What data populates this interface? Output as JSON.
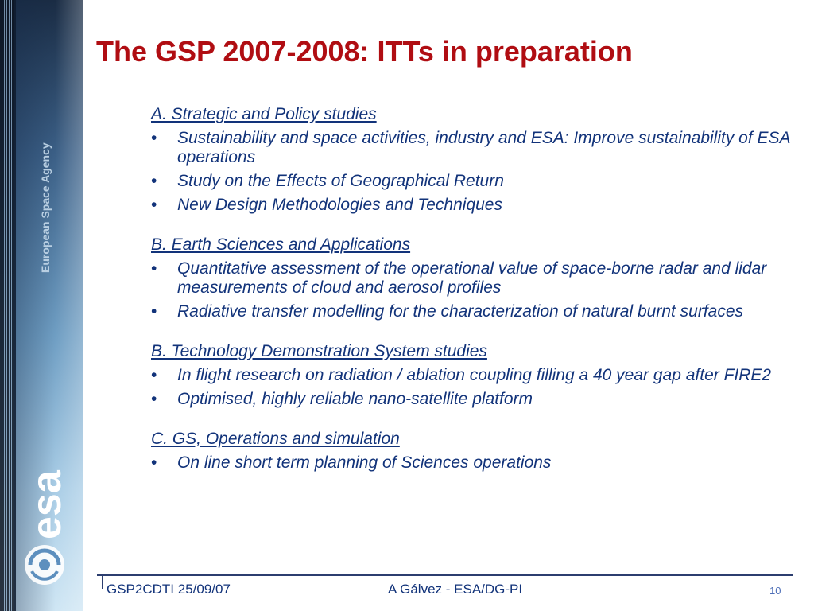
{
  "slide": {
    "title": "The GSP 2007-2008: ITTs in preparation",
    "sections": [
      {
        "heading": "A. Strategic and Policy studies",
        "items": [
          "Sustainability and space activities, industry and ESA: Improve sustainability of ESA operations",
          "Study on the Effects of Geographical Return",
          "New Design Methodologies and Techniques"
        ]
      },
      {
        "heading": "B. Earth Sciences and Applications",
        "items": [
          "Quantitative assessment of the operational value of space-borne radar and lidar measurements of cloud and aerosol profiles",
          "Radiative transfer modelling for the characterization of natural burnt surfaces"
        ]
      },
      {
        "heading": "B. Technology Demonstration System studies",
        "items": [
          "In flight research on radiation / ablation coupling filling a 40 year gap after FIRE2",
          "Optimised, highly reliable nano-satellite platform"
        ]
      },
      {
        "heading": "C. GS, Operations and simulation",
        "items": [
          " On line short term planning of Sciences operations"
        ]
      }
    ]
  },
  "branding": {
    "agency": "European Space Agency",
    "logo": "esa",
    "title_color": "#b00d12",
    "text_color": "#12337a"
  },
  "footer": {
    "left": "GSP2CDTI 25/09/07",
    "center": "A Gálvez - ESA/DG-PI",
    "page": "10"
  },
  "icons": {
    "bullet": "•"
  }
}
